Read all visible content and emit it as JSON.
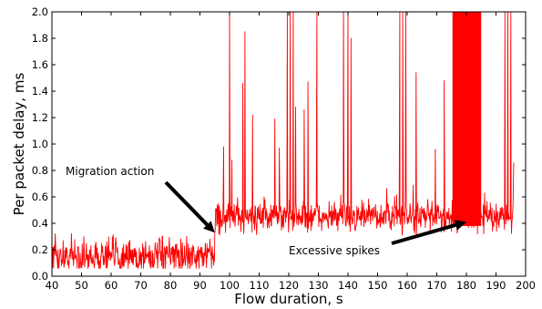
{
  "chart_data": {
    "type": "line",
    "title": "",
    "xlabel": "Flow duration, s",
    "ylabel": "Per packet delay, ms",
    "xlim": [
      40,
      200
    ],
    "ylim": [
      0,
      2.0
    ],
    "xticks": [
      "40",
      "50",
      "60",
      "70",
      "80",
      "90",
      "100",
      "110",
      "120",
      "130",
      "140",
      "150",
      "160",
      "170",
      "180",
      "190",
      "200"
    ],
    "yticks": [
      "0.0",
      "0.2",
      "0.4",
      "0.6",
      "0.8",
      "1.0",
      "1.2",
      "1.4",
      "1.6",
      "1.8",
      "2.0"
    ],
    "grid": false,
    "series_color": "#ff0000",
    "series": [
      {
        "segments": [
          {
            "x_start": 40,
            "x_end": 95,
            "baseline": 0.15,
            "noise": 0.09
          },
          {
            "x_start": 95,
            "x_end": 196,
            "baseline": 0.45,
            "noise": 0.08
          }
        ],
        "spikes": [
          {
            "x": 98,
            "y": 0.98
          },
          {
            "x": 100,
            "y": 2.0
          },
          {
            "x": 100.8,
            "y": 0.88
          },
          {
            "x": 104.5,
            "y": 1.46
          },
          {
            "x": 105.2,
            "y": 1.85
          },
          {
            "x": 107.8,
            "y": 1.22
          },
          {
            "x": 115.3,
            "y": 1.19
          },
          {
            "x": 116.8,
            "y": 0.97
          },
          {
            "x": 119.5,
            "y": 2.0
          },
          {
            "x": 120.5,
            "y": 2.0
          },
          {
            "x": 121.5,
            "y": 2.0
          },
          {
            "x": 122.3,
            "y": 1.28
          },
          {
            "x": 125.2,
            "y": 1.26
          },
          {
            "x": 126.5,
            "y": 1.47
          },
          {
            "x": 129.5,
            "y": 2.0
          },
          {
            "x": 138.5,
            "y": 2.0
          },
          {
            "x": 140,
            "y": 2.0
          },
          {
            "x": 141,
            "y": 1.8
          },
          {
            "x": 157.5,
            "y": 2.0
          },
          {
            "x": 158.5,
            "y": 2.0
          },
          {
            "x": 159.5,
            "y": 2.0
          },
          {
            "x": 163,
            "y": 1.54
          },
          {
            "x": 169.5,
            "y": 0.96
          },
          {
            "x": 172.5,
            "y": 1.48
          },
          {
            "x": 193,
            "y": 2.0
          },
          {
            "x": 194,
            "y": 2.0
          },
          {
            "x": 195,
            "y": 2.0
          },
          {
            "x": 196,
            "y": 0.86
          }
        ],
        "dense_band": {
          "x_start": 175.3,
          "x_end": 185,
          "y_max": 2.0
        }
      }
    ],
    "annotations": [
      {
        "text": "Migration action",
        "arrow_to": {
          "x": 95,
          "y": 0.33
        }
      },
      {
        "text": "Excessive spikes",
        "arrow_to": {
          "x": 180,
          "y": 0.41
        }
      }
    ]
  }
}
